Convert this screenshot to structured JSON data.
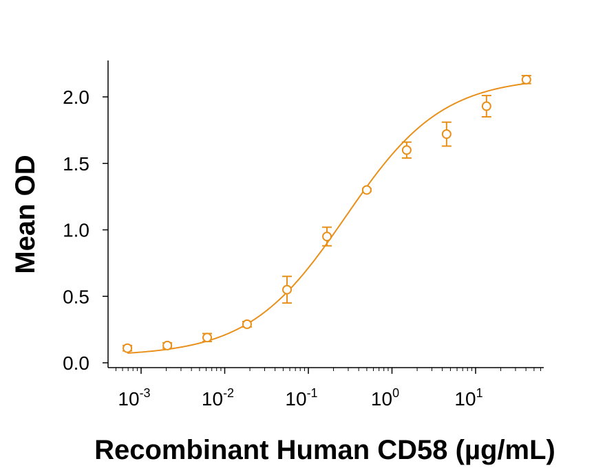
{
  "chart_data": {
    "type": "scatter",
    "title": "",
    "xlabel": "Recombinant Human CD58 (µg/mL)",
    "ylabel": "Mean OD",
    "xscale": "log",
    "xlim": [
      0.0005,
      60
    ],
    "ylim": [
      -0.02,
      2.27
    ],
    "grid": false,
    "color": "#E8901A",
    "x_ticks": [
      {
        "base": "10",
        "exp": "-3",
        "value": 0.001
      },
      {
        "base": "10",
        "exp": "-2",
        "value": 0.01
      },
      {
        "base": "10",
        "exp": "-1",
        "value": 0.1
      },
      {
        "base": "10",
        "exp": "0",
        "value": 1
      },
      {
        "base": "10",
        "exp": "1",
        "value": 10
      }
    ],
    "y_ticks": [
      {
        "label": "0.0",
        "value": 0.0
      },
      {
        "label": "0.5",
        "value": 0.5
      },
      {
        "label": "1.0",
        "value": 1.0
      },
      {
        "label": "1.5",
        "value": 1.5
      },
      {
        "label": "2.0",
        "value": 2.0
      }
    ],
    "points": [
      {
        "x": 0.000686,
        "y": 0.11,
        "err": 0.02
      },
      {
        "x": 0.00206,
        "y": 0.13,
        "err": 0.02
      },
      {
        "x": 0.00617,
        "y": 0.19,
        "err": 0.03
      },
      {
        "x": 0.0185,
        "y": 0.29,
        "err": 0.02
      },
      {
        "x": 0.0556,
        "y": 0.55,
        "err": 0.1
      },
      {
        "x": 0.167,
        "y": 0.95,
        "err": 0.07
      },
      {
        "x": 0.5,
        "y": 1.3,
        "err": 0.01
      },
      {
        "x": 1.5,
        "y": 1.6,
        "err": 0.06
      },
      {
        "x": 4.5,
        "y": 1.72,
        "err": 0.09
      },
      {
        "x": 13.5,
        "y": 1.93,
        "err": 0.08
      },
      {
        "x": 40.5,
        "y": 2.13,
        "err": 0.03
      }
    ],
    "fit": {
      "bottom": 0.05,
      "top": 2.15,
      "ec50": 0.28,
      "hill": 0.75
    }
  }
}
